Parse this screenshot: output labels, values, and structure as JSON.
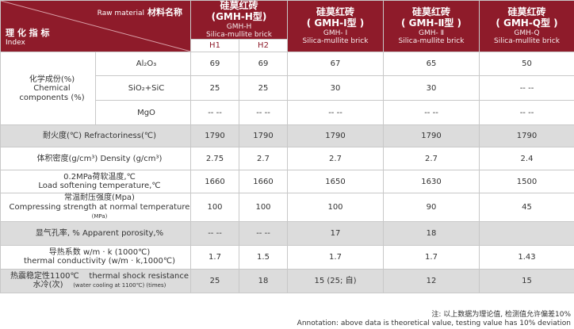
{
  "header": {
    "raw_material_en": "Raw material",
    "raw_material_cn": "材料名称",
    "index_cn": "理 化 指 标",
    "index_en": "Index",
    "products": [
      {
        "cn": "硅莫红砖",
        "model": "(GMH-H型)",
        "code": "GMH-H",
        "type": "Silica-mullite brick"
      },
      {
        "cn": "硅莫红砖",
        "model": "( GMH-Ⅰ型 )",
        "code": "GMH- Ⅰ",
        "type": "Silica-mullite brick"
      },
      {
        "cn": "硅莫红砖",
        "model": "( GMH-Ⅱ型 )",
        "code": "GMH- Ⅱ",
        "type": "Silica-mullite brick"
      },
      {
        "cn": "硅莫红砖",
        "model": "( GMH-Q型 )",
        "code": "GMH-Q",
        "type": "Silica-mullite brick"
      }
    ],
    "sub": [
      "H1",
      "H2"
    ]
  },
  "chem": {
    "label_cn": "化学成份(%)",
    "label_en1": "Chemical",
    "label_en2": "components (%)",
    "rows": [
      {
        "label": "Al₂O₃",
        "values": [
          "69",
          "69",
          "67",
          "65",
          "50"
        ]
      },
      {
        "label": "SiO₂+SiC",
        "values": [
          "25",
          "25",
          "30",
          "30",
          "-- --"
        ]
      },
      {
        "label": "MgO",
        "values": [
          "-- --",
          "-- --",
          "-- --",
          "-- --",
          "-- --"
        ]
      }
    ]
  },
  "rows": [
    {
      "l1": "耐火度(℃)      Refractoriness(℃)",
      "l2": "",
      "values": [
        "1790",
        "1790",
        "1790",
        "1790",
        "1790"
      ]
    },
    {
      "l1": "体积密度(g/cm³)   Density (g/cm³)",
      "l2": "",
      "values": [
        "2.75",
        "2.7",
        "2.7",
        "2.7",
        "2.4"
      ]
    },
    {
      "l1": "0.2MPa荷软温度,℃",
      "l2": "Load softening temperature,℃",
      "values": [
        "1660",
        "1660",
        "1650",
        "1630",
        "1500"
      ]
    },
    {
      "l1": "常温耐压强度(Mpa)",
      "l2": "Compressing strength at normal temperature",
      "l2small": "(MPa)",
      "values": [
        "100",
        "100",
        "100",
        "90",
        "45"
      ]
    },
    {
      "l1": "显气孔率, %    Apparent porosity,%",
      "l2": "",
      "values": [
        "-- --",
        "-- --",
        "17",
        "18",
        ""
      ]
    },
    {
      "l1": "导热系数    w/m · k (1000℃)",
      "l2": "thermal conductivity (w/m · k,1000℃)",
      "values": [
        "1.7",
        "1.5",
        "1.7",
        "1.7",
        "1.43"
      ]
    },
    {
      "l1": "热震稳定性1100℃",
      "l1b": "thermal shock resistance",
      "l2": "水冷(次)",
      "l2small": "(water cooling at 1100℃) (times)",
      "values": [
        "25",
        "18",
        "15 (25; 自)",
        "12",
        "15"
      ]
    }
  ],
  "note": {
    "cn": "注: 以上数据为理论值, 检测值允许偏差10%",
    "en": "Annotation: above data is theoretical value, testing value has 10% deviation"
  }
}
